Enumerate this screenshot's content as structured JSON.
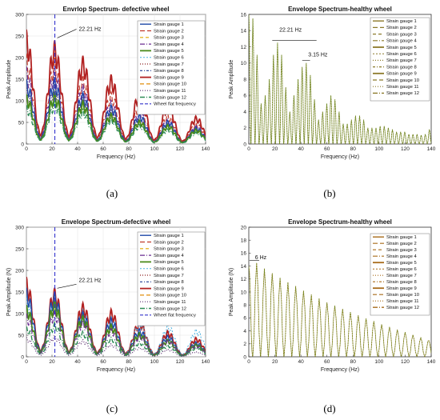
{
  "figure": {
    "caption_labels": [
      "(a)",
      "(b)",
      "(c)",
      "(d)"
    ]
  },
  "colors": {
    "gauges": [
      "#1f4aa8",
      "#c0392b",
      "#e0a800",
      "#6a2c91",
      "#4a8a1a",
      "#4ab0e0",
      "#8b1a1a",
      "#1f3a93",
      "#b22222",
      "#e08e0b",
      "#5b2c6f",
      "#2e8b57"
    ],
    "wheel_flat": "#3333cc",
    "healthy_b": "#8c7a2a",
    "healthy_d": "#a86b1a"
  },
  "chart_data": [
    {
      "type": "line",
      "panel": "a",
      "title": "Envrlop Spectrum- defective wheel",
      "xlabel": "Frequency (Hz)",
      "ylabel": "Peak Amplitude",
      "xlim": [
        0,
        140
      ],
      "ylim": [
        0,
        300
      ],
      "xticks": [
        0,
        20,
        40,
        60,
        80,
        100,
        120,
        140
      ],
      "yticks": [
        0,
        50,
        100,
        150,
        200,
        250,
        300
      ],
      "grid": true,
      "legend_position": "top-right",
      "legend": [
        "Strain gauge 1",
        "Strain gauge 2",
        "Strain gauge 3",
        "Strain gauge 4",
        "Strain gauge 5",
        "Strain gauge 6",
        "Strain gauge 7",
        "Strain gauge 8",
        "Strain gauge 9",
        "Strain gauge 10",
        "Strain gauge 11",
        "Strain gauge 12",
        "Wheel flat frequency"
      ],
      "reference_line": {
        "name": "Wheel flat frequency",
        "x": 22.21
      },
      "annotations": [
        {
          "text": "22.21 Hz",
          "x": 22.21,
          "y": 240
        }
      ],
      "series": [
        {
          "name": "Strain gauge 9",
          "peaks": [
            [
              0,
              265
            ],
            [
              22,
              240
            ],
            [
              44,
              205
            ],
            [
              67,
              160
            ],
            [
              89,
              125
            ],
            [
              111,
              95
            ],
            [
              133,
              65
            ],
            [
              140,
              58
            ]
          ]
        },
        {
          "name": "Strain gauge 2",
          "peaks": [
            [
              0,
              210
            ],
            [
              22,
              200
            ],
            [
              44,
              160
            ],
            [
              67,
              120
            ],
            [
              89,
              95
            ],
            [
              111,
              70
            ],
            [
              133,
              50
            ],
            [
              140,
              45
            ]
          ]
        },
        {
          "name": "Strain gauge 4",
          "peaks": [
            [
              0,
              180
            ],
            [
              22,
              180
            ],
            [
              44,
              140
            ],
            [
              67,
              100
            ],
            [
              89,
              80
            ],
            [
              111,
              60
            ],
            [
              133,
              45
            ],
            [
              140,
              40
            ]
          ]
        },
        {
          "name": "Strain gauge 1",
          "peaks": [
            [
              0,
              150
            ],
            [
              22,
              155
            ],
            [
              44,
              120
            ],
            [
              67,
              90
            ],
            [
              89,
              70
            ],
            [
              111,
              55
            ],
            [
              133,
              40
            ],
            [
              140,
              35
            ]
          ]
        },
        {
          "name": "Strain gauge 11",
          "peaks": [
            [
              0,
              130
            ],
            [
              22,
              140
            ],
            [
              44,
              110
            ],
            [
              67,
              80
            ],
            [
              89,
              60
            ],
            [
              111,
              48
            ],
            [
              133,
              35
            ],
            [
              140,
              30
            ]
          ]
        },
        {
          "name": "Strain gauge 5",
          "peaks": [
            [
              0,
              115
            ],
            [
              22,
              120
            ],
            [
              44,
              100
            ],
            [
              67,
              70
            ],
            [
              89,
              55
            ],
            [
              111,
              45
            ],
            [
              133,
              35
            ],
            [
              140,
              30
            ]
          ]
        },
        {
          "name": "Strain gauge 12",
          "peaks": [
            [
              0,
              90
            ],
            [
              22,
              100
            ],
            [
              44,
              80
            ],
            [
              67,
              60
            ],
            [
              89,
              45
            ],
            [
              111,
              35
            ],
            [
              133,
              28
            ],
            [
              140,
              25
            ]
          ]
        }
      ]
    },
    {
      "type": "line",
      "panel": "b",
      "title": "Envelope Spectrum-healthy wheel",
      "xlabel": "Frequency (Hz)",
      "ylabel": "Peak Amplitude",
      "xlim": [
        0,
        140
      ],
      "ylim": [
        0,
        16
      ],
      "xticks": [
        0,
        20,
        40,
        60,
        80,
        100,
        120,
        140
      ],
      "yticks": [
        0,
        2,
        4,
        6,
        8,
        10,
        12,
        14,
        16
      ],
      "grid": false,
      "legend_position": "top-right",
      "legend": [
        "Strain gauge 1",
        "Strain gauge 2",
        "Strain gauge 3",
        "Strain gauge 4",
        "Strain gauge 5",
        "Strain gauge 6",
        "Strain gauge 7",
        "Strain gauge 8",
        "Strain gauge 9",
        "Strain gauge 10",
        "Strain gauge 11",
        "Strain gauge 12"
      ],
      "annotations": [
        {
          "text": "22.21 Hz",
          "x": 22.21,
          "y": 13.5
        },
        {
          "text": "3.15 Hz",
          "x": 44.4,
          "y": 10.5
        }
      ],
      "series": [
        {
          "name": "Strain gauge 1",
          "x": [
            0,
            3.15,
            6.3,
            9.45,
            12.6,
            15.75,
            18.9,
            22.05,
            25.2,
            28.35,
            31.5,
            34.65,
            37.8,
            40.95,
            44.1,
            47.25,
            50.4,
            53.55,
            56.7,
            59.85,
            63,
            66.15,
            69.3,
            72.45,
            75.6,
            78.75,
            81.9,
            85.05,
            88.2,
            91.35,
            94.5,
            97.65,
            100.8,
            103.95,
            107.1,
            110.25,
            113.4,
            116.55,
            119.7,
            122.85,
            126,
            129.15,
            132.3,
            135.45,
            138.6
          ],
          "y": [
            16,
            15.5,
            11,
            5,
            6,
            8,
            11,
            12.5,
            11,
            7,
            4,
            6,
            8,
            9.5,
            10,
            8.5,
            5.5,
            3,
            4,
            5,
            6,
            5.5,
            4,
            2.5,
            2.5,
            3,
            3.5,
            3.5,
            3,
            2,
            2,
            2,
            2.2,
            2.2,
            2,
            1.8,
            1.5,
            1.5,
            1.5,
            1.2,
            1.2,
            1.2,
            1.1,
            1.2,
            1.8
          ]
        }
      ]
    },
    {
      "type": "line",
      "panel": "c",
      "title": "Envelope Spectrum-defective wheel",
      "xlabel": "Frequency (Hz)",
      "ylabel": "Peak Amplitude (N)",
      "xlim": [
        0,
        140
      ],
      "ylim": [
        0,
        300
      ],
      "xticks": [
        0,
        20,
        40,
        60,
        80,
        100,
        120,
        140
      ],
      "yticks": [
        0,
        50,
        100,
        150,
        200,
        250,
        300
      ],
      "grid": true,
      "legend_position": "top-right",
      "legend": [
        "Strain gauge 1",
        "Strain gauge 2",
        "Strain gauge 3",
        "Strain gauge 4",
        "Strain gauge 5",
        "Strain gauge 6",
        "Strain gauge 7",
        "Strain gauge 8",
        "Strain gauge 9",
        "Strain gauge 10",
        "Strain gauge 11",
        "Strain gauge 12",
        "Wheel flat frequency"
      ],
      "reference_line": {
        "name": "Wheel flat frequency",
        "x": 22.21
      },
      "annotations": [
        {
          "text": "22.21 Hz",
          "x": 22.21,
          "y": 155
        }
      ],
      "series": [
        {
          "name": "Strain gauge 9",
          "peaks": [
            [
              0,
              185
            ],
            [
              22,
              160
            ],
            [
              44,
              125
            ],
            [
              67,
              110
            ],
            [
              89,
              85
            ],
            [
              111,
              60
            ],
            [
              133,
              45
            ],
            [
              140,
              38
            ]
          ]
        },
        {
          "name": "Strain gauge 6",
          "peaks": [
            [
              0,
              140
            ],
            [
              22,
              145
            ],
            [
              44,
              110
            ],
            [
              67,
              95
            ],
            [
              89,
              85
            ],
            [
              111,
              75
            ],
            [
              133,
              65
            ],
            [
              140,
              60
            ]
          ]
        },
        {
          "name": "Strain gauge 1",
          "peaks": [
            [
              0,
              160
            ],
            [
              22,
              150
            ],
            [
              44,
              105
            ],
            [
              67,
              90
            ],
            [
              89,
              65
            ],
            [
              111,
              50
            ],
            [
              133,
              35
            ],
            [
              140,
              30
            ]
          ]
        },
        {
          "name": "Strain gauge 5",
          "peaks": [
            [
              0,
              120
            ],
            [
              22,
              130
            ],
            [
              44,
              95
            ],
            [
              67,
              75
            ],
            [
              89,
              55
            ],
            [
              111,
              40
            ],
            [
              133,
              30
            ],
            [
              140,
              25
            ]
          ]
        },
        {
          "name": "Strain gauge 4",
          "peaks": [
            [
              0,
              100
            ],
            [
              22,
              110
            ],
            [
              44,
              85
            ],
            [
              67,
              65
            ],
            [
              89,
              50
            ],
            [
              111,
              38
            ],
            [
              133,
              28
            ],
            [
              140,
              22
            ]
          ]
        },
        {
          "name": "Strain gauge 12",
          "peaks": [
            [
              0,
              70
            ],
            [
              22,
              80
            ],
            [
              44,
              60
            ],
            [
              67,
              45
            ],
            [
              89,
              35
            ],
            [
              111,
              28
            ],
            [
              133,
              22
            ],
            [
              140,
              18
            ]
          ]
        },
        {
          "name": "Strain gauge 11",
          "peaks": [
            [
              0,
              45
            ],
            [
              22,
              50
            ],
            [
              44,
              40
            ],
            [
              67,
              30
            ],
            [
              89,
              22
            ],
            [
              111,
              18
            ],
            [
              133,
              12
            ],
            [
              140,
              10
            ]
          ]
        }
      ]
    },
    {
      "type": "line",
      "panel": "d",
      "title": "Envelope Spectrum-healthy wheel",
      "xlabel": "Frequency (Hz)",
      "ylabel": "Peak Amplitude (N)",
      "xlim": [
        0,
        140
      ],
      "ylim": [
        0,
        20
      ],
      "xticks": [
        0,
        20,
        40,
        60,
        80,
        100,
        120,
        140
      ],
      "yticks": [
        0,
        2,
        4,
        6,
        8,
        10,
        12,
        14,
        16,
        18,
        20
      ],
      "grid": false,
      "legend_position": "top-right",
      "legend": [
        "Strain gauge 1",
        "Strain gauge 2",
        "Strain gauge 3",
        "Strain gauge 4",
        "Strain gauge 5",
        "Strain gauge 6",
        "Strain gauge 7",
        "Strain gauge 8",
        "Strain gauge 9",
        "Strain gauge 10",
        "Strain gauge 11",
        "Strain gauge 12"
      ],
      "annotations": [
        {
          "text": "6 Hz",
          "x": 6,
          "y": 14.7
        }
      ],
      "series": [
        {
          "name": "Strain gauge 1",
          "x": [
            0,
            6,
            12,
            18,
            24,
            30,
            36,
            42,
            48,
            54,
            60,
            66,
            72,
            78,
            84,
            90,
            96,
            102,
            108,
            114,
            120,
            126,
            132,
            138
          ],
          "y": [
            14,
            14.5,
            13.6,
            12.9,
            12.2,
            11.5,
            10.9,
            10.2,
            9.6,
            9.0,
            8.4,
            7.9,
            7.4,
            6.9,
            6.4,
            5.9,
            5.5,
            5.0,
            4.6,
            4.2,
            3.8,
            3.4,
            3.0,
            2.6
          ]
        }
      ]
    }
  ]
}
